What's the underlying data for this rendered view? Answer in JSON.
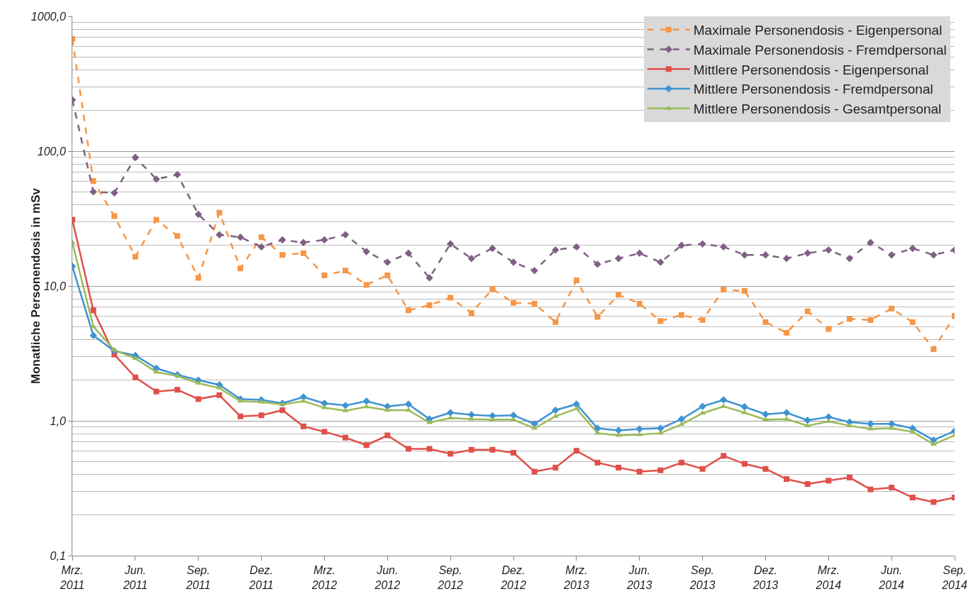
{
  "chart_data": {
    "type": "line",
    "ylabel": "Monatliche Personendosis in mSv",
    "log": "y",
    "grid": "y",
    "legend": "top right",
    "categories": [
      "Mrz.\n2011",
      null,
      null,
      "Jun.\n2011",
      null,
      null,
      "Sep.\n2011",
      null,
      null,
      "Dez.\n2011",
      null,
      null,
      "Mrz.\n2012",
      null,
      null,
      "Jun.\n2012",
      null,
      null,
      "Sep.\n2012",
      null,
      null,
      "Dez.\n2012",
      null,
      null,
      "Mrz.\n2013",
      null,
      null,
      "Jun.\n2013",
      null,
      null,
      "Sep.\n2013",
      null,
      null,
      "Dez.\n2013",
      null,
      null,
      "Mrz.\n2014",
      null,
      null,
      "Jun.\n2014",
      null,
      null,
      "Sep.\n2014"
    ],
    "ylim": [
      0.1,
      1000
    ],
    "yticks": [
      {
        "value": 0.1,
        "label": "0,1"
      },
      {
        "value": 1,
        "label": "1,0"
      },
      {
        "value": 10,
        "label": "10,0"
      },
      {
        "value": 100,
        "label": "100,0"
      },
      {
        "value": 1000,
        "label": "1000,0"
      }
    ],
    "series": [
      {
        "name": "Maximale Personendosis - Eigenpersonal",
        "color": "#f79646",
        "marker": "square",
        "line_style": "dashed",
        "values": [
          680,
          60,
          33,
          16.5,
          31,
          23.5,
          11.5,
          35,
          13.5,
          23,
          17,
          17.5,
          12,
          13,
          10.2,
          12,
          6.6,
          7.2,
          8.2,
          6.3,
          9.5,
          7.5,
          7.4,
          5.4,
          11,
          5.9,
          8.6,
          7.4,
          5.5,
          6.1,
          5.6,
          9.4,
          9.2,
          5.4,
          4.5,
          6.5,
          4.8,
          5.7,
          5.6,
          6.8,
          5.4,
          3.4,
          6.0
        ]
      },
      {
        "name": "Maximale Personendosis - Fremdpersonal",
        "color": "#7f6084",
        "marker": "diamond",
        "line_style": "dashed",
        "values": [
          240,
          50,
          49,
          90,
          62,
          67,
          34,
          24,
          23,
          19.5,
          22,
          21,
          22,
          24,
          18,
          15,
          17.5,
          11.5,
          20.5,
          16,
          19,
          15,
          13,
          18.5,
          19.5,
          14.5,
          16,
          17.5,
          15,
          20,
          20.5,
          19.5,
          17,
          17,
          16,
          17.5,
          18.5,
          16,
          21,
          17,
          19,
          17,
          18.5
        ]
      },
      {
        "name": "Mittlere Personendosis - Eigenpersonal",
        "color": "#e0504a",
        "marker": "square",
        "line_style": "solid",
        "values": [
          31,
          6.6,
          3.1,
          2.1,
          1.65,
          1.7,
          1.45,
          1.55,
          1.08,
          1.1,
          1.2,
          0.91,
          0.83,
          0.75,
          0.66,
          0.78,
          0.62,
          0.62,
          0.57,
          0.61,
          0.61,
          0.58,
          0.42,
          0.45,
          0.6,
          0.49,
          0.45,
          0.42,
          0.43,
          0.49,
          0.44,
          0.55,
          0.48,
          0.44,
          0.37,
          0.34,
          0.36,
          0.38,
          0.31,
          0.32,
          0.27,
          0.25,
          0.27
        ]
      },
      {
        "name": "Mittlere Personendosis - Fremdpersonal",
        "color": "#3f93d1",
        "marker": "diamond",
        "line_style": "solid",
        "values": [
          14,
          4.3,
          3.3,
          3.05,
          2.45,
          2.2,
          2.0,
          1.85,
          1.45,
          1.43,
          1.35,
          1.5,
          1.35,
          1.3,
          1.4,
          1.28,
          1.33,
          1.03,
          1.15,
          1.11,
          1.09,
          1.1,
          0.95,
          1.2,
          1.33,
          0.88,
          0.85,
          0.87,
          0.88,
          1.03,
          1.28,
          1.43,
          1.27,
          1.12,
          1.15,
          1.01,
          1.07,
          0.98,
          0.95,
          0.95,
          0.88,
          0.72,
          0.84
        ]
      },
      {
        "name": "Mittlere Personendosis - Gesamtpersonal",
        "color": "#9bbb59",
        "marker": "triangle",
        "line_style": "solid",
        "values": [
          21,
          5.0,
          3.35,
          2.9,
          2.3,
          2.15,
          1.9,
          1.75,
          1.4,
          1.38,
          1.32,
          1.4,
          1.25,
          1.19,
          1.27,
          1.2,
          1.2,
          0.97,
          1.05,
          1.03,
          1.02,
          1.02,
          0.88,
          1.08,
          1.23,
          0.81,
          0.78,
          0.79,
          0.81,
          0.94,
          1.14,
          1.28,
          1.15,
          1.02,
          1.03,
          0.92,
          0.99,
          0.92,
          0.87,
          0.88,
          0.83,
          0.67,
          0.78
        ]
      }
    ]
  }
}
